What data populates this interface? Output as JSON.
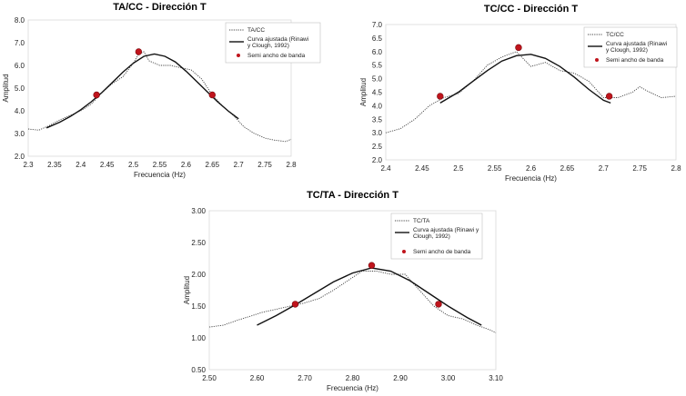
{
  "chart_data": [
    {
      "type": "line",
      "title": "TA/CC - Dirección T",
      "xlabel": "Frecuencia (Hz)",
      "ylabel": "Amplitud",
      "xlim": [
        2.3,
        2.8
      ],
      "ylim": [
        2.0,
        8.0
      ],
      "xticks": [
        "2.3",
        "2.35",
        "2.4",
        "2.45",
        "2.5",
        "2.55",
        "2.6",
        "2.65",
        "2.7",
        "2.75",
        "2.8"
      ],
      "yticks": [
        "2.0",
        "3.0",
        "4.0",
        "5.0",
        "6.0",
        "7.0",
        "8.0"
      ],
      "legend": [
        "TA/CC",
        "Curva ajustada (Rinawi",
        "y Clough, 1992)",
        "Semi ancho de banda"
      ],
      "series": [
        {
          "name": "TA/CC",
          "style": "dotted",
          "x": [
            2.3,
            2.32,
            2.34,
            2.36,
            2.38,
            2.4,
            2.42,
            2.44,
            2.46,
            2.48,
            2.5,
            2.51,
            2.52,
            2.53,
            2.54,
            2.55,
            2.57,
            2.59,
            2.61,
            2.63,
            2.65,
            2.67,
            2.69,
            2.71,
            2.73,
            2.75,
            2.77,
            2.79,
            2.8
          ],
          "y": [
            3.2,
            3.15,
            3.35,
            3.6,
            3.8,
            4.0,
            4.3,
            4.8,
            5.2,
            5.5,
            6.1,
            6.5,
            6.6,
            6.2,
            6.1,
            6.0,
            6.0,
            5.9,
            5.8,
            5.4,
            4.7,
            4.2,
            3.8,
            3.3,
            3.0,
            2.8,
            2.7,
            2.65,
            2.75
          ]
        },
        {
          "name": "Curva ajustada (Rinawi y Clough, 1992)",
          "style": "solid",
          "x": [
            2.335,
            2.36,
            2.38,
            2.4,
            2.42,
            2.44,
            2.46,
            2.48,
            2.5,
            2.52,
            2.54,
            2.56,
            2.58,
            2.6,
            2.62,
            2.64,
            2.66,
            2.68,
            2.7
          ],
          "y": [
            3.25,
            3.5,
            3.75,
            4.05,
            4.4,
            4.8,
            5.25,
            5.7,
            6.1,
            6.4,
            6.5,
            6.4,
            6.15,
            5.75,
            5.3,
            4.85,
            4.4,
            4.0,
            3.65
          ]
        },
        {
          "name": "Semi ancho de banda",
          "style": "points",
          "x": [
            2.43,
            2.51,
            2.65
          ],
          "y": [
            4.7,
            6.6,
            4.7
          ]
        }
      ]
    },
    {
      "type": "line",
      "title": "TC/CC - Dirección T",
      "xlabel": "Frecuencia (Hz)",
      "ylabel": "Amplitud",
      "xlim": [
        2.4,
        2.8
      ],
      "ylim": [
        2.0,
        7.0
      ],
      "xticks": [
        "2.4",
        "2.45",
        "2.5",
        "2.55",
        "2.6",
        "2.65",
        "2.7",
        "2.75",
        "2.8"
      ],
      "yticks": [
        "2.0",
        "2.5",
        "3.0",
        "3.5",
        "4.0",
        "4.5",
        "5.0",
        "5.5",
        "6.0",
        "6.5",
        "7.0"
      ],
      "legend": [
        "TC/CC",
        "Curva ajustada (Rinawi",
        "y Clough, 1992)",
        "Semi ancho de banda"
      ],
      "series": [
        {
          "name": "TC/CC",
          "style": "dotted",
          "x": [
            2.4,
            2.42,
            2.44,
            2.46,
            2.48,
            2.5,
            2.52,
            2.54,
            2.56,
            2.58,
            2.6,
            2.62,
            2.64,
            2.66,
            2.68,
            2.7,
            2.72,
            2.74,
            2.75,
            2.76,
            2.78,
            2.8
          ],
          "y": [
            3.0,
            3.15,
            3.5,
            4.0,
            4.3,
            4.45,
            4.9,
            5.5,
            5.8,
            6.0,
            5.45,
            5.6,
            5.3,
            5.2,
            4.9,
            4.3,
            4.3,
            4.5,
            4.7,
            4.55,
            4.3,
            4.35
          ]
        },
        {
          "name": "Curva ajustada (Rinawi y Clough, 1992)",
          "style": "solid",
          "x": [
            2.475,
            2.5,
            2.52,
            2.54,
            2.56,
            2.58,
            2.6,
            2.62,
            2.64,
            2.66,
            2.68,
            2.7,
            2.71
          ],
          "y": [
            4.1,
            4.5,
            4.9,
            5.3,
            5.65,
            5.85,
            5.9,
            5.75,
            5.45,
            5.05,
            4.6,
            4.2,
            4.1
          ]
        },
        {
          "name": "Semi ancho de banda",
          "style": "points",
          "x": [
            2.475,
            2.583,
            2.708
          ],
          "y": [
            4.35,
            6.15,
            4.35
          ]
        }
      ]
    },
    {
      "type": "line",
      "title": "TC/TA - Dirección T",
      "xlabel": "Frecuencia (Hz)",
      "ylabel": "Amplitud",
      "xlim": [
        2.5,
        3.1
      ],
      "ylim": [
        0.5,
        3.0
      ],
      "xticks": [
        "2.50",
        "2.60",
        "2.70",
        "2.80",
        "2.90",
        "3.00",
        "3.10"
      ],
      "yticks": [
        "0.50",
        "1.00",
        "1.50",
        "2.00",
        "2.50",
        "3.00"
      ],
      "legend": [
        "TC/TA",
        "Curva ajustada (Rinawi y",
        "Clough, 1992)",
        "Semi ancho de banda"
      ],
      "series": [
        {
          "name": "TC/TA",
          "style": "dotted",
          "x": [
            2.5,
            2.53,
            2.56,
            2.59,
            2.61,
            2.64,
            2.67,
            2.7,
            2.73,
            2.76,
            2.79,
            2.82,
            2.85,
            2.88,
            2.91,
            2.94,
            2.97,
            3.0,
            3.03,
            3.06,
            3.09,
            3.1
          ],
          "y": [
            1.17,
            1.2,
            1.28,
            1.35,
            1.4,
            1.45,
            1.5,
            1.55,
            1.62,
            1.75,
            1.9,
            2.05,
            2.05,
            2.0,
            2.0,
            1.75,
            1.5,
            1.35,
            1.3,
            1.2,
            1.12,
            1.08
          ]
        },
        {
          "name": "Curva ajustada (Rinawi y Clough, 1992)",
          "style": "solid",
          "x": [
            2.6,
            2.64,
            2.68,
            2.72,
            2.76,
            2.8,
            2.84,
            2.88,
            2.92,
            2.96,
            3.0,
            3.04,
            3.07
          ],
          "y": [
            1.2,
            1.35,
            1.52,
            1.7,
            1.88,
            2.02,
            2.1,
            2.05,
            1.9,
            1.7,
            1.5,
            1.32,
            1.2
          ]
        },
        {
          "name": "Semi ancho de banda",
          "style": "points",
          "x": [
            2.68,
            2.84,
            2.98
          ],
          "y": [
            1.53,
            2.14,
            1.53
          ]
        }
      ]
    }
  ]
}
